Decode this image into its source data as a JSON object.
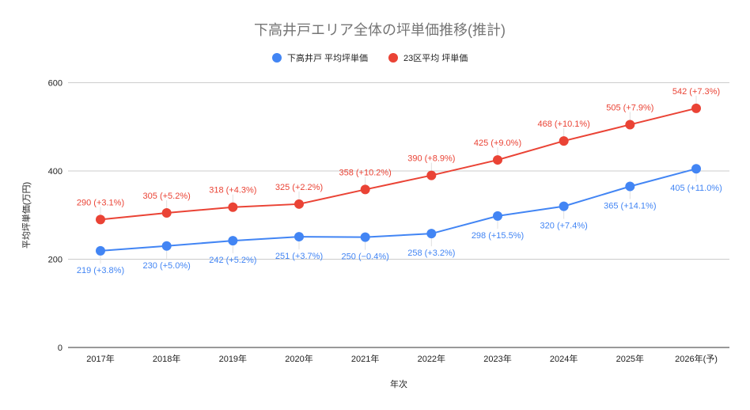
{
  "chart_data": {
    "type": "line",
    "title": "下高井戸エリア全体の坪単価推移(推計)",
    "xlabel": "年次",
    "ylabel": "平均坪単価(万円)",
    "categories": [
      "2017年",
      "2018年",
      "2019年",
      "2020年",
      "2021年",
      "2022年",
      "2023年",
      "2024年",
      "2025年",
      "2026年(予)"
    ],
    "ylim": [
      0,
      600
    ],
    "yticks": [
      "0",
      "200",
      "400",
      "600"
    ],
    "ytick_values": [
      0,
      200,
      400,
      600
    ],
    "grid": true,
    "legend_position": "top",
    "series": [
      {
        "name": "下高井戸 平均坪単価",
        "color": "#4285f4",
        "values": [
          219,
          230,
          242,
          251,
          250,
          258,
          298,
          320,
          365,
          405
        ],
        "labels": [
          "219 (+3.8%)",
          "230 (+5.0%)",
          "242 (+5.2%)",
          "251 (+3.7%)",
          "250 (−0.4%)",
          "258 (+3.2%)",
          "298 (+15.5%)",
          "320 (+7.4%)",
          "365 (+14.1%)",
          "405 (+11.0%)"
        ],
        "label_position": "below"
      },
      {
        "name": "23区平均 坪単価",
        "color": "#ea4335",
        "values": [
          290,
          305,
          318,
          325,
          358,
          390,
          425,
          468,
          505,
          542
        ],
        "labels": [
          "290 (+3.1%)",
          "305 (+5.2%)",
          "318 (+4.3%)",
          "325 (+2.2%)",
          "358 (+10.2%)",
          "390 (+8.9%)",
          "425 (+9.0%)",
          "468 (+10.1%)",
          "505 (+7.9%)",
          "542 (+7.3%)"
        ],
        "label_position": "above"
      }
    ]
  }
}
